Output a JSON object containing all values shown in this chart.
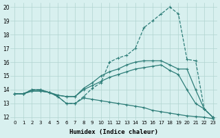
{
  "xlabel": "Humidex (Indice chaleur)",
  "bg_color": "#d8f0ef",
  "grid_color": "#b0d4d0",
  "line_color": "#2d7d78",
  "xlim": [
    -0.5,
    23.5
  ],
  "ylim": [
    11.8,
    20.3
  ],
  "yticks": [
    12,
    13,
    14,
    15,
    16,
    17,
    18,
    19,
    20
  ],
  "xticks": [
    0,
    1,
    2,
    3,
    4,
    5,
    6,
    7,
    8,
    9,
    10,
    11,
    12,
    13,
    14,
    15,
    16,
    17,
    18,
    19,
    20,
    21,
    22,
    23
  ],
  "s1_x": [
    0,
    1,
    2,
    3,
    4,
    5,
    6,
    7,
    8,
    9,
    10,
    11,
    12,
    13,
    14,
    15,
    16,
    17,
    18,
    19,
    20,
    21,
    22,
    23
  ],
  "s1_y": [
    13.7,
    13.7,
    13.9,
    13.9,
    13.8,
    13.5,
    13.0,
    13.0,
    13.4,
    13.3,
    13.2,
    13.1,
    13.0,
    12.9,
    12.8,
    12.7,
    12.5,
    12.4,
    12.3,
    12.2,
    12.1,
    12.05,
    12.0,
    11.9
  ],
  "s2_x": [
    0,
    1,
    2,
    3,
    4,
    5,
    6,
    7,
    8,
    9,
    10,
    11,
    12,
    13,
    14,
    15,
    16,
    17,
    18,
    19,
    20,
    21,
    22,
    23
  ],
  "s2_y": [
    13.7,
    13.7,
    13.9,
    13.9,
    13.8,
    13.6,
    13.5,
    13.5,
    14.0,
    14.3,
    14.6,
    14.9,
    15.1,
    15.3,
    15.5,
    15.6,
    15.7,
    15.8,
    15.4,
    15.1,
    14.0,
    13.0,
    12.6,
    12.0
  ],
  "s3_x": [
    0,
    1,
    2,
    3,
    4,
    5,
    6,
    7,
    8,
    9,
    10,
    11,
    12,
    13,
    14,
    15,
    16,
    17,
    18,
    19,
    20,
    21,
    22,
    23
  ],
  "s3_y": [
    13.7,
    13.7,
    14.0,
    14.0,
    13.8,
    13.6,
    13.5,
    13.5,
    14.1,
    14.5,
    15.0,
    15.3,
    15.5,
    15.8,
    16.0,
    16.1,
    16.1,
    16.1,
    15.8,
    15.5,
    15.5,
    14.0,
    12.6,
    12.0
  ],
  "s4_x": [
    0,
    1,
    2,
    3,
    4,
    5,
    6,
    7,
    8,
    9,
    10,
    11,
    12,
    13,
    14,
    15,
    16,
    17,
    18,
    19,
    20,
    21,
    22,
    23
  ],
  "s4_y": [
    13.7,
    13.7,
    14.0,
    14.0,
    13.8,
    13.5,
    13.0,
    13.0,
    13.5,
    14.1,
    14.5,
    16.0,
    16.3,
    16.5,
    17.0,
    18.5,
    19.0,
    19.5,
    20.0,
    19.5,
    16.2,
    16.1,
    12.6,
    12.0
  ]
}
